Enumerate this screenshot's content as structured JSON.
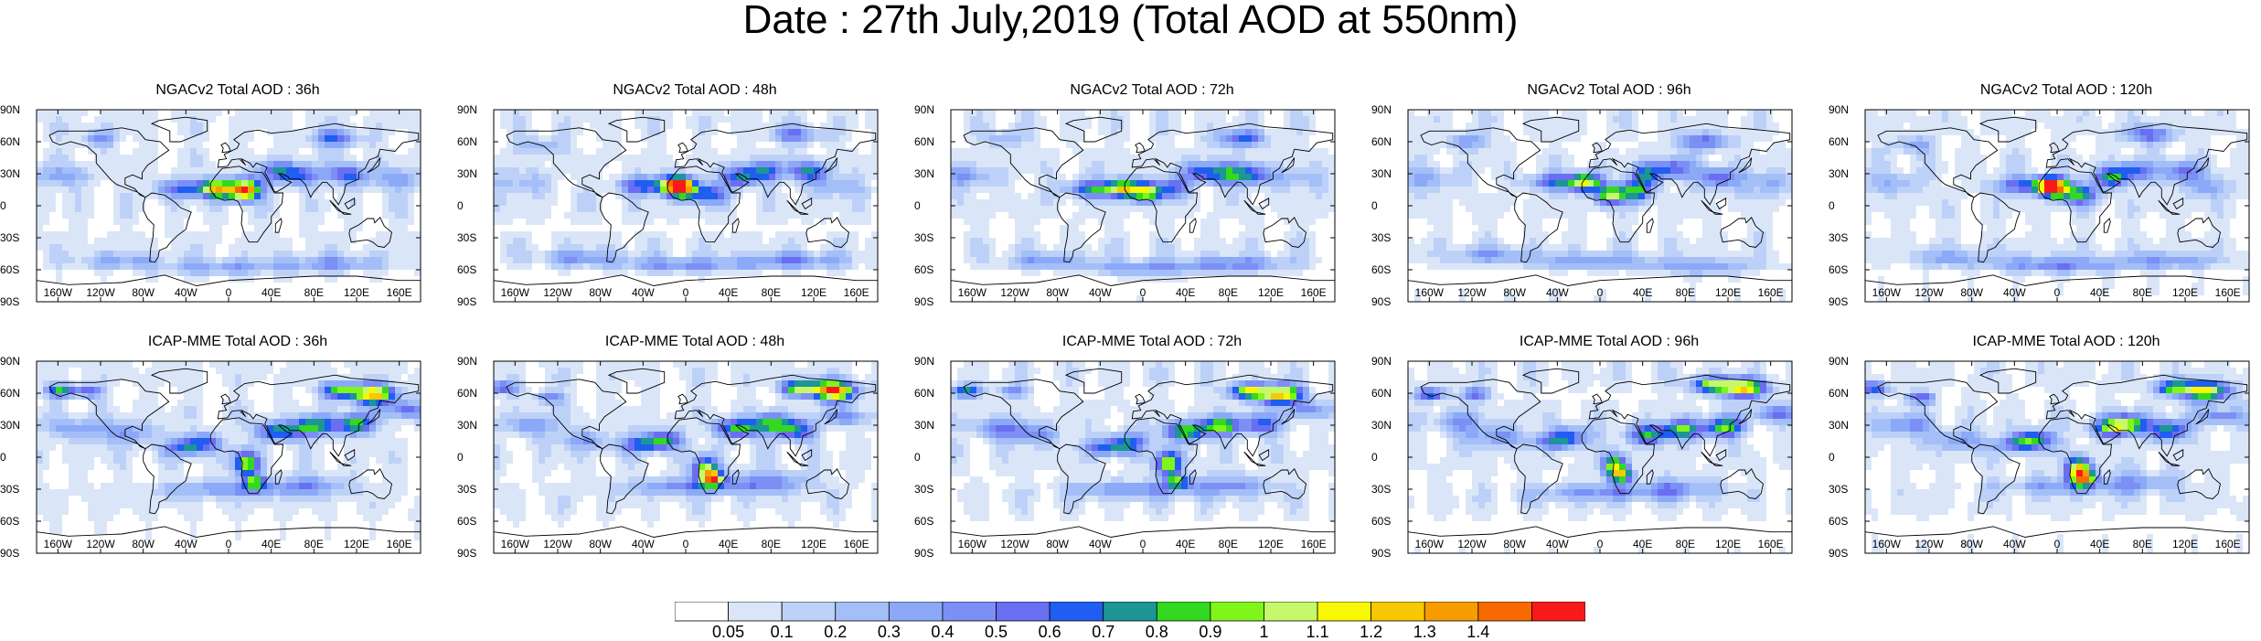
{
  "title": "Date : 27th July,2019 (Total AOD at 550nm)",
  "panels": [
    {
      "title": "NGACv2 Total AOD : 36h"
    },
    {
      "title": "NGACv2 Total AOD : 48h"
    },
    {
      "title": "NGACv2 Total AOD : 72h"
    },
    {
      "title": "NGACv2 Total AOD : 96h"
    },
    {
      "title": "NGACv2 Total AOD : 120h"
    },
    {
      "title": "ICAP-MME Total AOD : 36h"
    },
    {
      "title": "ICAP-MME Total AOD : 48h"
    },
    {
      "title": "ICAP-MME Total AOD : 72h"
    },
    {
      "title": "ICAP-MME Total AOD : 96h"
    },
    {
      "title": "ICAP-MME Total AOD : 120h"
    }
  ],
  "lat_labels": [
    "90N",
    "60N",
    "30N",
    "0",
    "30S",
    "60S",
    "90S"
  ],
  "lon_labels": [
    "160W",
    "120W",
    "80W",
    "40W",
    "0",
    "40E",
    "80E",
    "120E",
    "160E"
  ],
  "colorbar": {
    "labels": [
      "0.05",
      "0.1",
      "0.2",
      "0.3",
      "0.4",
      "0.5",
      "0.6",
      "0.7",
      "0.8",
      "0.9",
      "1",
      "1.1",
      "1.2",
      "1.3",
      "1.4"
    ],
    "colors": [
      "#ffffff",
      "#dae6f8",
      "#bdd1f8",
      "#a4bff8",
      "#8ca9f8",
      "#7b8ff5",
      "#6a6ef0",
      "#1f5ef0",
      "#1c9696",
      "#33d921",
      "#7ff51a",
      "#c6f86a",
      "#f8f800",
      "#f8c800",
      "#f89d00",
      "#f86a00",
      "#f81a1a"
    ]
  }
}
